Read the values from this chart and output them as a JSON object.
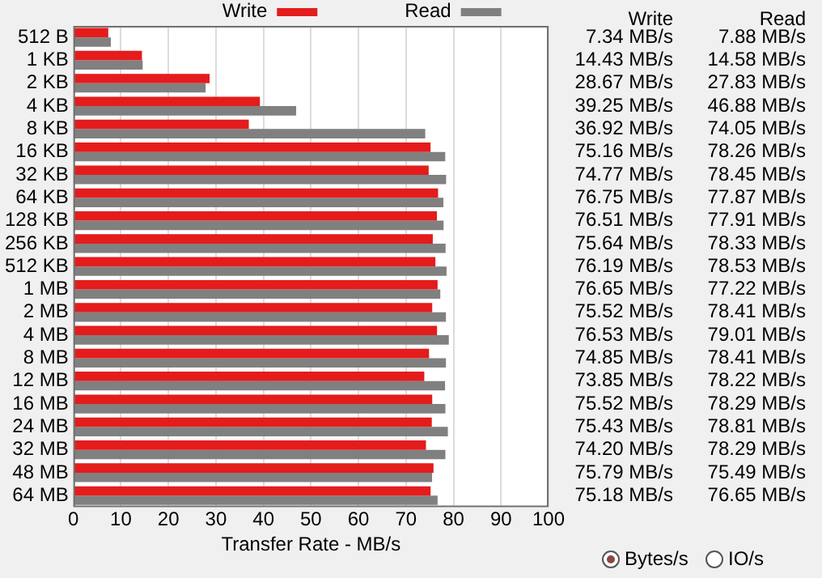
{
  "chart_data": {
    "type": "bar",
    "orientation": "horizontal",
    "xlabel": "Transfer Rate - MB/s",
    "categories": [
      "512 B",
      "1 KB",
      "2 KB",
      "4 KB",
      "8 KB",
      "16 KB",
      "32 KB",
      "64 KB",
      "128 KB",
      "256 KB",
      "512 KB",
      "1 MB",
      "2 MB",
      "4 MB",
      "8 MB",
      "12 MB",
      "16 MB",
      "24 MB",
      "32 MB",
      "48 MB",
      "64 MB"
    ],
    "series": [
      {
        "name": "Write",
        "color": "#e41c1c",
        "values": [
          7.34,
          14.43,
          28.67,
          39.25,
          36.92,
          75.16,
          74.77,
          76.75,
          76.51,
          75.64,
          76.19,
          76.65,
          75.52,
          76.53,
          74.85,
          73.85,
          75.52,
          75.43,
          74.2,
          75.79,
          75.18
        ],
        "value_labels": [
          "7.34 MB/s",
          "14.43 MB/s",
          "28.67 MB/s",
          "39.25 MB/s",
          "36.92 MB/s",
          "75.16 MB/s",
          "74.77 MB/s",
          "76.75 MB/s",
          "76.51 MB/s",
          "75.64 MB/s",
          "76.19 MB/s",
          "76.65 MB/s",
          "75.52 MB/s",
          "76.53 MB/s",
          "74.85 MB/s",
          "73.85 MB/s",
          "75.52 MB/s",
          "75.43 MB/s",
          "74.20 MB/s",
          "75.79 MB/s",
          "75.18 MB/s"
        ]
      },
      {
        "name": "Read",
        "color": "#808080",
        "values": [
          7.88,
          14.58,
          27.83,
          46.88,
          74.05,
          78.26,
          78.45,
          77.87,
          77.91,
          78.33,
          78.53,
          77.22,
          78.41,
          79.01,
          78.41,
          78.22,
          78.29,
          78.81,
          78.29,
          75.49,
          76.65
        ],
        "value_labels": [
          "7.88 MB/s",
          "14.58 MB/s",
          "27.83 MB/s",
          "46.88 MB/s",
          "74.05 MB/s",
          "78.26 MB/s",
          "78.45 MB/s",
          "77.87 MB/s",
          "77.91 MB/s",
          "78.33 MB/s",
          "78.53 MB/s",
          "77.22 MB/s",
          "78.41 MB/s",
          "79.01 MB/s",
          "78.41 MB/s",
          "78.22 MB/s",
          "78.29 MB/s",
          "78.81 MB/s",
          "78.29 MB/s",
          "75.49 MB/s",
          "76.65 MB/s"
        ]
      }
    ],
    "xlim": [
      0,
      100
    ],
    "xticks": [
      0,
      10,
      20,
      30,
      40,
      50,
      60,
      70,
      80,
      90,
      100
    ],
    "grid": "x",
    "legend": "top",
    "annotations": [
      "Bytes/s",
      "IO/s"
    ]
  }
}
